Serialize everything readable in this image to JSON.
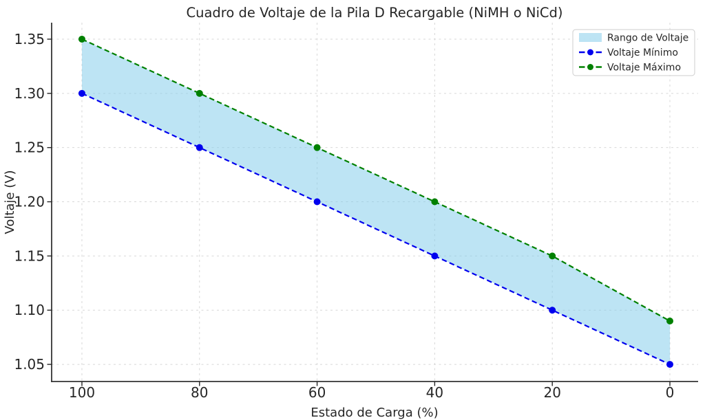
{
  "figure": {
    "background": "#ffffff",
    "text_color": "#262626",
    "spine_color": "#333333",
    "grid_color": "#d7d7d7"
  },
  "chart_data": {
    "type": "area",
    "title": "Cuadro de Voltaje de la Pila D Recargable (NiMH o NiCd)",
    "xlabel": "Estado de Carga (%)",
    "ylabel": "Voltaje (V)",
    "x": [
      100,
      80,
      60,
      40,
      20,
      0
    ],
    "x_axis_reversed": true,
    "xticks": [
      100,
      80,
      60,
      40,
      20,
      0
    ],
    "yticks": [
      1.05,
      1.1,
      1.15,
      1.2,
      1.25,
      1.3,
      1.35
    ],
    "xlim": [
      105.15,
      -4.8
    ],
    "ylim": [
      1.0342,
      1.3652
    ],
    "grid": true,
    "band": {
      "label": "Rango de Voltaje",
      "color": "#87ceeb",
      "opacity": 0.55
    },
    "series": [
      {
        "name": "Voltaje Mínimo",
        "values": [
          1.3,
          1.25,
          1.2,
          1.15,
          1.1,
          1.05
        ],
        "color": "#0000ee",
        "linestyle": "dashed",
        "marker": "circle"
      },
      {
        "name": "Voltaje Máximo",
        "values": [
          1.35,
          1.3,
          1.25,
          1.2,
          1.15,
          1.09
        ],
        "color": "#008000",
        "linestyle": "dashed",
        "marker": "circle"
      }
    ],
    "legend": {
      "position": "upper right",
      "entries": [
        "Rango de Voltaje",
        "Voltaje Mínimo",
        "Voltaje Máximo"
      ]
    }
  }
}
